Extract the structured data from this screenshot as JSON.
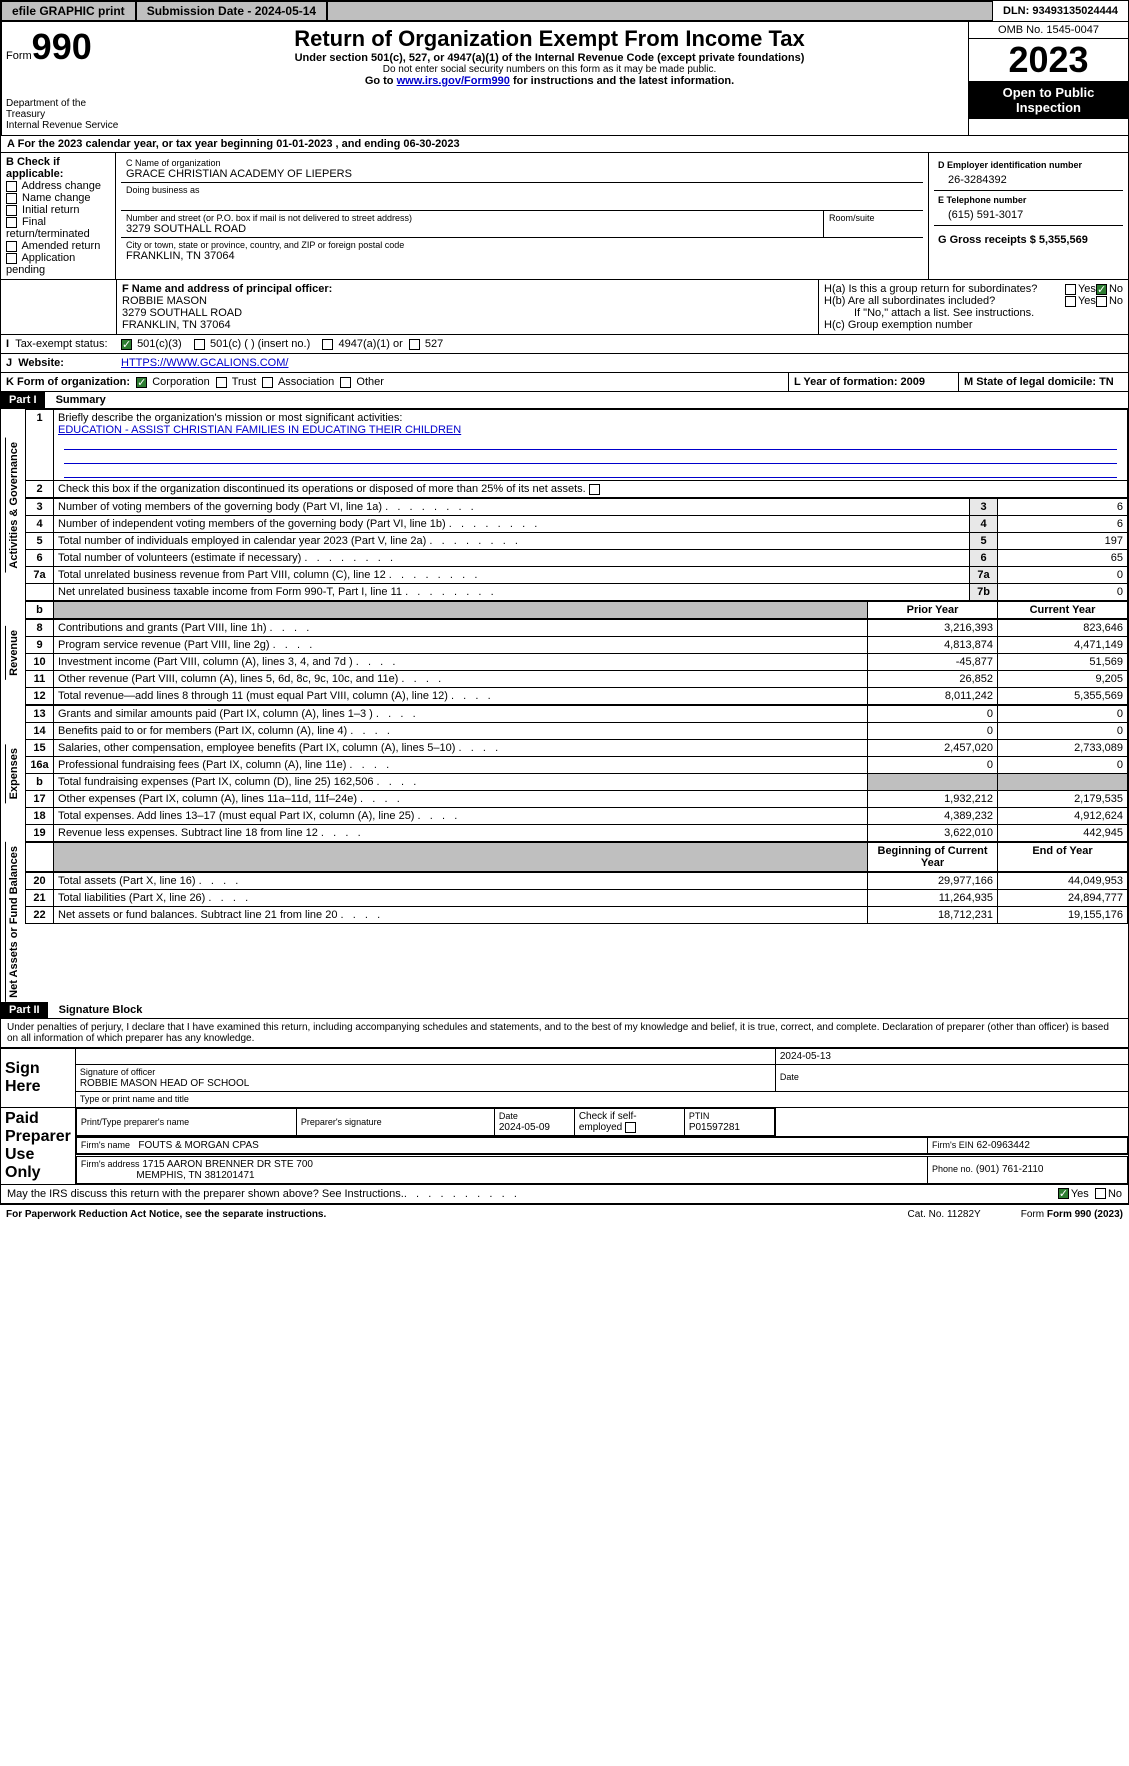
{
  "topbar": {
    "efile": "efile GRAPHIC print",
    "submission": "Submission Date - 2024-05-14",
    "dln": "DLN: 93493135024444"
  },
  "header": {
    "form_label": "Form",
    "form_num": "990",
    "dept": "Department of the Treasury",
    "irs": "Internal Revenue Service",
    "title": "Return of Organization Exempt From Income Tax",
    "subtitle": "Under section 501(c), 527, or 4947(a)(1) of the Internal Revenue Code (except private foundations)",
    "ssn": "Do not enter social security numbers on this form as it may be made public.",
    "goto_pre": "Go to ",
    "goto_link": "www.irs.gov/Form990",
    "goto_post": " for instructions and the latest information.",
    "omb": "OMB No. 1545-0047",
    "year": "2023",
    "open": "Open to Public Inspection"
  },
  "rowA": "For the 2023 calendar year, or tax year beginning 01-01-2023   , and ending 06-30-2023",
  "boxB": {
    "title": "B Check if applicable:",
    "opts": [
      "Address change",
      "Name change",
      "Initial return",
      "Final return/terminated",
      "Amended return",
      "Application pending"
    ]
  },
  "boxC": {
    "label_name": "C Name of organization",
    "name": "GRACE CHRISTIAN ACADEMY OF LIEPERS",
    "dba_label": "Doing business as",
    "addr_label": "Number and street (or P.O. box if mail is not delivered to street address)",
    "room_label": "Room/suite",
    "addr": "3279 SOUTHALL ROAD",
    "city_label": "City or town, state or province, country, and ZIP or foreign postal code",
    "city": "FRANKLIN, TN  37064"
  },
  "boxD": {
    "label": "D Employer identification number",
    "val": "26-3284392"
  },
  "boxE": {
    "label": "E Telephone number",
    "val": "(615) 591-3017"
  },
  "boxG": {
    "label": "G Gross receipts $ 5,355,569"
  },
  "boxF": {
    "label": "F  Name and address of principal officer:",
    "name": "ROBBIE MASON",
    "addr1": "3279 SOUTHALL ROAD",
    "addr2": "FRANKLIN, TN  37064"
  },
  "boxH": {
    "a": "H(a)  Is this a group return for subordinates?",
    "b": "H(b)  Are all subordinates included?",
    "b_note": "If \"No,\" attach a list. See instructions.",
    "c": "H(c)  Group exemption number",
    "yes": "Yes",
    "no": "No"
  },
  "rowI": {
    "label": "Tax-exempt status:",
    "o1": "501(c)(3)",
    "o2": "501(c) (  ) (insert no.)",
    "o3": "4947(a)(1) or",
    "o4": "527"
  },
  "rowJ": {
    "label": "Website:",
    "val": "HTTPS://WWW.GCALIONS.COM/"
  },
  "rowK": {
    "label": "K Form of organization:",
    "o1": "Corporation",
    "o2": "Trust",
    "o3": "Association",
    "o4": "Other"
  },
  "rowL": "L Year of formation: 2009",
  "rowM": "M State of legal domicile: TN",
  "part1": {
    "label": "Part I",
    "title": "Summary"
  },
  "summary": {
    "q1": "Briefly describe the organization's mission or most significant activities:",
    "q1v": "EDUCATION - ASSIST CHRISTIAN FAMILIES IN EDUCATING THEIR CHILDREN",
    "q2": "Check this box       if the organization discontinued its operations or disposed of more than 25% of its net assets.",
    "rows_gov": [
      {
        "n": "3",
        "t": "Number of voting members of the governing body (Part VI, line 1a)",
        "c": "3",
        "v": "6"
      },
      {
        "n": "4",
        "t": "Number of independent voting members of the governing body (Part VI, line 1b)",
        "c": "4",
        "v": "6"
      },
      {
        "n": "5",
        "t": "Total number of individuals employed in calendar year 2023 (Part V, line 2a)",
        "c": "5",
        "v": "197"
      },
      {
        "n": "6",
        "t": "Total number of volunteers (estimate if necessary)",
        "c": "6",
        "v": "65"
      },
      {
        "n": "7a",
        "t": "Total unrelated business revenue from Part VIII, column (C), line 12",
        "c": "7a",
        "v": "0"
      },
      {
        "n": "",
        "t": "Net unrelated business taxable income from Form 990-T, Part I, line 11",
        "c": "7b",
        "v": "0"
      }
    ],
    "hdr_prior": "Prior Year",
    "hdr_curr": "Current Year",
    "rev": [
      {
        "n": "8",
        "t": "Contributions and grants (Part VIII, line 1h)",
        "p": "3,216,393",
        "c": "823,646"
      },
      {
        "n": "9",
        "t": "Program service revenue (Part VIII, line 2g)",
        "p": "4,813,874",
        "c": "4,471,149"
      },
      {
        "n": "10",
        "t": "Investment income (Part VIII, column (A), lines 3, 4, and 7d )",
        "p": "-45,877",
        "c": "51,569"
      },
      {
        "n": "11",
        "t": "Other revenue (Part VIII, column (A), lines 5, 6d, 8c, 9c, 10c, and 11e)",
        "p": "26,852",
        "c": "9,205"
      },
      {
        "n": "12",
        "t": "Total revenue—add lines 8 through 11 (must equal Part VIII, column (A), line 12)",
        "p": "8,011,242",
        "c": "5,355,569"
      }
    ],
    "exp": [
      {
        "n": "13",
        "t": "Grants and similar amounts paid (Part IX, column (A), lines 1–3 )",
        "p": "0",
        "c": "0"
      },
      {
        "n": "14",
        "t": "Benefits paid to or for members (Part IX, column (A), line 4)",
        "p": "0",
        "c": "0"
      },
      {
        "n": "15",
        "t": "Salaries, other compensation, employee benefits (Part IX, column (A), lines 5–10)",
        "p": "2,457,020",
        "c": "2,733,089"
      },
      {
        "n": "16a",
        "t": "Professional fundraising fees (Part IX, column (A), line 11e)",
        "p": "0",
        "c": "0"
      },
      {
        "n": "b",
        "t": "Total fundraising expenses (Part IX, column (D), line 25) 162,506",
        "p": "",
        "c": "",
        "shade": true
      },
      {
        "n": "17",
        "t": "Other expenses (Part IX, column (A), lines 11a–11d, 11f–24e)",
        "p": "1,932,212",
        "c": "2,179,535"
      },
      {
        "n": "18",
        "t": "Total expenses. Add lines 13–17 (must equal Part IX, column (A), line 25)",
        "p": "4,389,232",
        "c": "4,912,624"
      },
      {
        "n": "19",
        "t": "Revenue less expenses. Subtract line 18 from line 12",
        "p": "3,622,010",
        "c": "442,945"
      }
    ],
    "hdr_beg": "Beginning of Current Year",
    "hdr_end": "End of Year",
    "net": [
      {
        "n": "20",
        "t": "Total assets (Part X, line 16)",
        "p": "29,977,166",
        "c": "44,049,953"
      },
      {
        "n": "21",
        "t": "Total liabilities (Part X, line 26)",
        "p": "11,264,935",
        "c": "24,894,777"
      },
      {
        "n": "22",
        "t": "Net assets or fund balances. Subtract line 21 from line 20",
        "p": "18,712,231",
        "c": "19,155,176"
      }
    ],
    "side_gov": "Activities & Governance",
    "side_rev": "Revenue",
    "side_exp": "Expenses",
    "side_net": "Net Assets or Fund Balances"
  },
  "part2": {
    "label": "Part II",
    "title": "Signature Block"
  },
  "sig": {
    "decl": "Under penalties of perjury, I declare that I have examined this return, including accompanying schedules and statements, and to the best of my knowledge and belief, it is true, correct, and complete. Declaration of preparer (other than officer) is based on all information of which preparer has any knowledge.",
    "sign_here": "Sign Here",
    "date1": "2024-05-13",
    "sig_officer": "Signature of officer",
    "officer": "ROBBIE MASON  HEAD OF SCHOOL",
    "type_name": "Type or print name and title",
    "date_lbl": "Date",
    "paid": "Paid Preparer Use Only",
    "prep_name_lbl": "Print/Type preparer's name",
    "prep_sig_lbl": "Preparer's signature",
    "date2": "2024-05-09",
    "check_self": "Check         if self-employed",
    "ptin_lbl": "PTIN",
    "ptin": "P01597281",
    "firm_name_lbl": "Firm's name",
    "firm_name": "FOUTS & MORGAN CPAS",
    "firm_ein_lbl": "Firm's EIN",
    "firm_ein": "62-0963442",
    "firm_addr_lbl": "Firm's address",
    "firm_addr1": "1715 AARON BRENNER DR STE 700",
    "firm_addr2": "MEMPHIS, TN  381201471",
    "phone_lbl": "Phone no.",
    "phone": "(901) 761-2110",
    "discuss": "May the IRS discuss this return with the preparer shown above? See Instructions.",
    "yes": "Yes",
    "no": "No"
  },
  "footer": {
    "pra": "For Paperwork Reduction Act Notice, see the separate instructions.",
    "cat": "Cat. No. 11282Y",
    "form": "Form 990 (2023)"
  }
}
